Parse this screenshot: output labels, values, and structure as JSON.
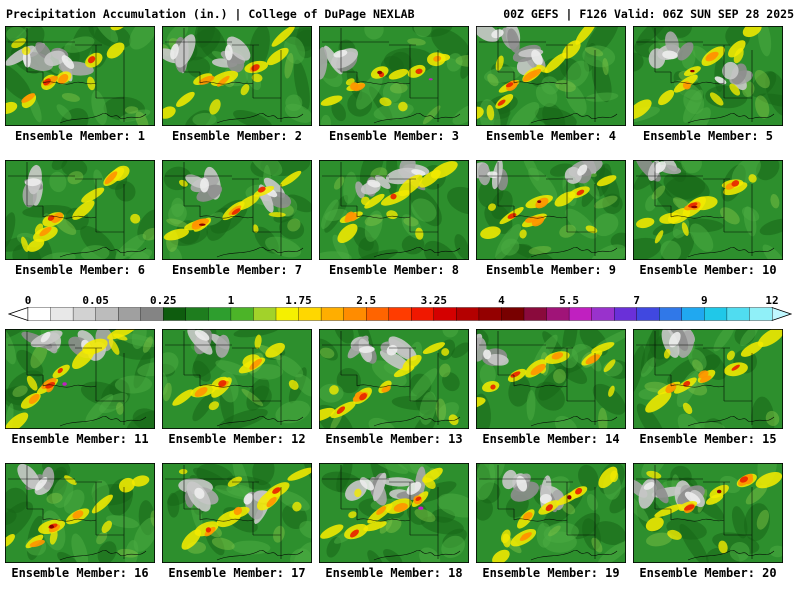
{
  "header": {
    "left": "Precipitation Accumulation (in.) | College of DuPage NEXLAB",
    "right": "00Z GEFS | F126 Valid: 06Z SUN SEP 28 2025"
  },
  "ensemble": {
    "label_prefix": "Ensemble Member:",
    "members": [
      1,
      2,
      3,
      4,
      5,
      6,
      7,
      8,
      9,
      10,
      11,
      12,
      13,
      14,
      15,
      16,
      17,
      18,
      19,
      20
    ]
  },
  "colorbar": {
    "ticks": [
      "0",
      "0.05",
      "0.25",
      "1",
      "1.75",
      "2.5",
      "3.25",
      "4",
      "5.5",
      "7",
      "9",
      "12"
    ],
    "cell_colors": [
      "#ffffff",
      "#e8e8e8",
      "#d2d2d2",
      "#bcbcbc",
      "#a0a0a0",
      "#848484",
      "#0e5c0e",
      "#1e7d1e",
      "#2e9e2e",
      "#4cb428",
      "#a2d22a",
      "#f5f000",
      "#ffd700",
      "#ffae00",
      "#ff8c00",
      "#ff6400",
      "#ff3c00",
      "#f01800",
      "#d40000",
      "#b40000",
      "#940000",
      "#780000",
      "#8a0a3c",
      "#a01478",
      "#c020c0",
      "#9932cc",
      "#6a30d8",
      "#4048e0",
      "#3078e8",
      "#20a8f0",
      "#20c8e8",
      "#50dcf0",
      "#90f0f8"
    ],
    "arrow_left_color": "#ffffff",
    "arrow_right_color": "#c0f8ff"
  },
  "map_palette": {
    "base": "#2d8f2d",
    "green_dark": "#176617",
    "green_light": "#4aab42",
    "green_pale": "#7cc244",
    "grays": [
      "#c9c9c9",
      "#a8a8a8",
      "#8e8e8e"
    ],
    "gray_bright": "#ededed",
    "yellow": "#f2ea00",
    "orange": "#ff9500",
    "red": "#e82800",
    "dark_red": "#8b0000",
    "magenta": "#c020c0"
  }
}
